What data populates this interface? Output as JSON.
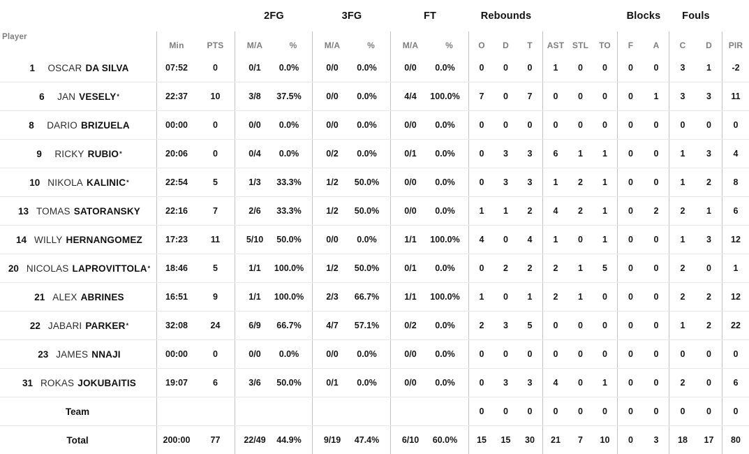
{
  "table": {
    "group_headers": {
      "fg2": "2FG",
      "fg3": "3FG",
      "ft": "FT",
      "rebounds": "Rebounds",
      "blocks": "Blocks",
      "fouls": "Fouls"
    },
    "sub_headers": {
      "player": "Player",
      "min": "Min",
      "pts": "PTS",
      "ma": "M/A",
      "pct": "%",
      "reb_o": "O",
      "reb_d": "D",
      "reb_t": "T",
      "ast": "AST",
      "stl": "STL",
      "to": "TO",
      "blk_f": "F",
      "blk_a": "A",
      "foul_c": "C",
      "foul_d": "D",
      "pir": "PIR"
    },
    "colors": {
      "header_gray": "#7e7e7e",
      "text_black": "#111111",
      "vertical_divider": "#c3c3c3",
      "horizontal_divider": "#e7e7e7"
    },
    "rows": [
      {
        "type": "player",
        "number": "1",
        "first": "OSCAR",
        "last": "DA SILVA",
        "starter": false,
        "min": "07:52",
        "pts": "0",
        "fg2_ma": "0/1",
        "fg2_pct": "0.0%",
        "fg3_ma": "0/0",
        "fg3_pct": "0.0%",
        "ft_ma": "0/0",
        "ft_pct": "0.0%",
        "reb_o": "0",
        "reb_d": "0",
        "reb_t": "0",
        "ast": "1",
        "stl": "0",
        "to": "0",
        "blk_f": "0",
        "blk_a": "0",
        "foul_c": "3",
        "foul_d": "1",
        "pir": "-2"
      },
      {
        "type": "player",
        "number": "6",
        "first": "JAN",
        "last": "VESELY",
        "starter": true,
        "min": "22:37",
        "pts": "10",
        "fg2_ma": "3/8",
        "fg2_pct": "37.5%",
        "fg3_ma": "0/0",
        "fg3_pct": "0.0%",
        "ft_ma": "4/4",
        "ft_pct": "100.0%",
        "reb_o": "7",
        "reb_d": "0",
        "reb_t": "7",
        "ast": "0",
        "stl": "0",
        "to": "0",
        "blk_f": "0",
        "blk_a": "1",
        "foul_c": "3",
        "foul_d": "3",
        "pir": "11"
      },
      {
        "type": "player",
        "number": "8",
        "first": "DARIO",
        "last": "BRIZUELA",
        "starter": false,
        "min": "00:00",
        "pts": "0",
        "fg2_ma": "0/0",
        "fg2_pct": "0.0%",
        "fg3_ma": "0/0",
        "fg3_pct": "0.0%",
        "ft_ma": "0/0",
        "ft_pct": "0.0%",
        "reb_o": "0",
        "reb_d": "0",
        "reb_t": "0",
        "ast": "0",
        "stl": "0",
        "to": "0",
        "blk_f": "0",
        "blk_a": "0",
        "foul_c": "0",
        "foul_d": "0",
        "pir": "0"
      },
      {
        "type": "player",
        "number": "9",
        "first": "RICKY",
        "last": "RUBIO",
        "starter": true,
        "min": "20:06",
        "pts": "0",
        "fg2_ma": "0/4",
        "fg2_pct": "0.0%",
        "fg3_ma": "0/2",
        "fg3_pct": "0.0%",
        "ft_ma": "0/1",
        "ft_pct": "0.0%",
        "reb_o": "0",
        "reb_d": "3",
        "reb_t": "3",
        "ast": "6",
        "stl": "1",
        "to": "1",
        "blk_f": "0",
        "blk_a": "0",
        "foul_c": "1",
        "foul_d": "3",
        "pir": "4"
      },
      {
        "type": "player",
        "number": "10",
        "first": "NIKOLA",
        "last": "KALINIC",
        "starter": true,
        "min": "22:54",
        "pts": "5",
        "fg2_ma": "1/3",
        "fg2_pct": "33.3%",
        "fg3_ma": "1/2",
        "fg3_pct": "50.0%",
        "ft_ma": "0/0",
        "ft_pct": "0.0%",
        "reb_o": "0",
        "reb_d": "3",
        "reb_t": "3",
        "ast": "1",
        "stl": "2",
        "to": "1",
        "blk_f": "0",
        "blk_a": "0",
        "foul_c": "1",
        "foul_d": "2",
        "pir": "8"
      },
      {
        "type": "player",
        "number": "13",
        "first": "TOMAS",
        "last": "SATORANSKY",
        "starter": false,
        "min": "22:16",
        "pts": "7",
        "fg2_ma": "2/6",
        "fg2_pct": "33.3%",
        "fg3_ma": "1/2",
        "fg3_pct": "50.0%",
        "ft_ma": "0/0",
        "ft_pct": "0.0%",
        "reb_o": "1",
        "reb_d": "1",
        "reb_t": "2",
        "ast": "4",
        "stl": "2",
        "to": "1",
        "blk_f": "0",
        "blk_a": "2",
        "foul_c": "2",
        "foul_d": "1",
        "pir": "6"
      },
      {
        "type": "player",
        "number": "14",
        "first": "WILLY",
        "last": "HERNANGOMEZ",
        "starter": false,
        "min": "17:23",
        "pts": "11",
        "fg2_ma": "5/10",
        "fg2_pct": "50.0%",
        "fg3_ma": "0/0",
        "fg3_pct": "0.0%",
        "ft_ma": "1/1",
        "ft_pct": "100.0%",
        "reb_o": "4",
        "reb_d": "0",
        "reb_t": "4",
        "ast": "1",
        "stl": "0",
        "to": "1",
        "blk_f": "0",
        "blk_a": "0",
        "foul_c": "1",
        "foul_d": "3",
        "pir": "12"
      },
      {
        "type": "player",
        "number": "20",
        "first": "NICOLAS",
        "last": "LAPROVITTOLA",
        "starter": true,
        "min": "18:46",
        "pts": "5",
        "fg2_ma": "1/1",
        "fg2_pct": "100.0%",
        "fg3_ma": "1/2",
        "fg3_pct": "50.0%",
        "ft_ma": "0/1",
        "ft_pct": "0.0%",
        "reb_o": "0",
        "reb_d": "2",
        "reb_t": "2",
        "ast": "2",
        "stl": "1",
        "to": "5",
        "blk_f": "0",
        "blk_a": "0",
        "foul_c": "2",
        "foul_d": "0",
        "pir": "1"
      },
      {
        "type": "player",
        "number": "21",
        "first": "ALEX",
        "last": "ABRINES",
        "starter": false,
        "min": "16:51",
        "pts": "9",
        "fg2_ma": "1/1",
        "fg2_pct": "100.0%",
        "fg3_ma": "2/3",
        "fg3_pct": "66.7%",
        "ft_ma": "1/1",
        "ft_pct": "100.0%",
        "reb_o": "1",
        "reb_d": "0",
        "reb_t": "1",
        "ast": "2",
        "stl": "1",
        "to": "0",
        "blk_f": "0",
        "blk_a": "0",
        "foul_c": "2",
        "foul_d": "2",
        "pir": "12"
      },
      {
        "type": "player",
        "number": "22",
        "first": "JABARI",
        "last": "PARKER",
        "starter": true,
        "min": "32:08",
        "pts": "24",
        "fg2_ma": "6/9",
        "fg2_pct": "66.7%",
        "fg3_ma": "4/7",
        "fg3_pct": "57.1%",
        "ft_ma": "0/2",
        "ft_pct": "0.0%",
        "reb_o": "2",
        "reb_d": "3",
        "reb_t": "5",
        "ast": "0",
        "stl": "0",
        "to": "0",
        "blk_f": "0",
        "blk_a": "0",
        "foul_c": "1",
        "foul_d": "2",
        "pir": "22"
      },
      {
        "type": "player",
        "number": "23",
        "first": "JAMES",
        "last": "NNAJI",
        "starter": false,
        "min": "00:00",
        "pts": "0",
        "fg2_ma": "0/0",
        "fg2_pct": "0.0%",
        "fg3_ma": "0/0",
        "fg3_pct": "0.0%",
        "ft_ma": "0/0",
        "ft_pct": "0.0%",
        "reb_o": "0",
        "reb_d": "0",
        "reb_t": "0",
        "ast": "0",
        "stl": "0",
        "to": "0",
        "blk_f": "0",
        "blk_a": "0",
        "foul_c": "0",
        "foul_d": "0",
        "pir": "0"
      },
      {
        "type": "player",
        "number": "31",
        "first": "ROKAS",
        "last": "JOKUBAITIS",
        "starter": false,
        "min": "19:07",
        "pts": "6",
        "fg2_ma": "3/6",
        "fg2_pct": "50.0%",
        "fg3_ma": "0/1",
        "fg3_pct": "0.0%",
        "ft_ma": "0/0",
        "ft_pct": "0.0%",
        "reb_o": "0",
        "reb_d": "3",
        "reb_t": "3",
        "ast": "4",
        "stl": "0",
        "to": "1",
        "blk_f": "0",
        "blk_a": "0",
        "foul_c": "2",
        "foul_d": "0",
        "pir": "6"
      },
      {
        "type": "team",
        "label": "Team",
        "min": "",
        "pts": "",
        "fg2_ma": "",
        "fg2_pct": "",
        "fg3_ma": "",
        "fg3_pct": "",
        "ft_ma": "",
        "ft_pct": "",
        "reb_o": "0",
        "reb_d": "0",
        "reb_t": "0",
        "ast": "0",
        "stl": "0",
        "to": "0",
        "blk_f": "0",
        "blk_a": "0",
        "foul_c": "0",
        "foul_d": "0",
        "pir": "0"
      },
      {
        "type": "total",
        "label": "Total",
        "min": "200:00",
        "pts": "77",
        "fg2_ma": "22/49",
        "fg2_pct": "44.9%",
        "fg3_ma": "9/19",
        "fg3_pct": "47.4%",
        "ft_ma": "6/10",
        "ft_pct": "60.0%",
        "reb_o": "15",
        "reb_d": "15",
        "reb_t": "30",
        "ast": "21",
        "stl": "7",
        "to": "10",
        "blk_f": "0",
        "blk_a": "3",
        "foul_c": "18",
        "foul_d": "17",
        "pir": "80"
      }
    ]
  }
}
